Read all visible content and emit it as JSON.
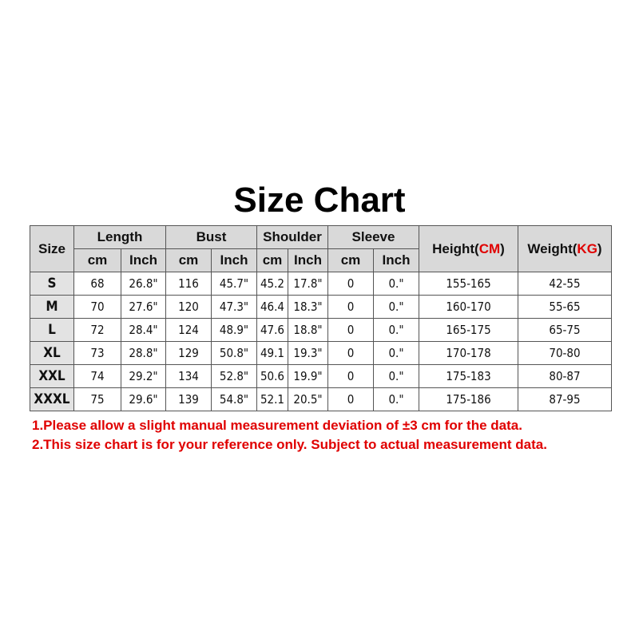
{
  "title": "Size Chart",
  "table": {
    "size_header": "Size",
    "groups": [
      "Length",
      "Bust",
      "Shoulder",
      "Sleeve"
    ],
    "sub_cm": "cm",
    "sub_inch": "Inch",
    "height_header": {
      "label": "Height(",
      "unit": "CM",
      "close": ")"
    },
    "weight_header": {
      "label": "Weight(",
      "unit": "KG",
      "close": ")"
    },
    "rows": [
      [
        "S",
        "68",
        "26.8\"",
        "116",
        "45.7\"",
        "45.2",
        "17.8\"",
        "0",
        "0.\"",
        "155-165",
        "42-55"
      ],
      [
        "M",
        "70",
        "27.6\"",
        "120",
        "47.3\"",
        "46.4",
        "18.3\"",
        "0",
        "0.\"",
        "160-170",
        "55-65"
      ],
      [
        "L",
        "72",
        "28.4\"",
        "124",
        "48.9\"",
        "47.6",
        "18.8\"",
        "0",
        "0.\"",
        "165-175",
        "65-75"
      ],
      [
        "XL",
        "73",
        "28.8\"",
        "129",
        "50.8\"",
        "49.1",
        "19.3\"",
        "0",
        "0.\"",
        "170-178",
        "70-80"
      ],
      [
        "XXL",
        "74",
        "29.2\"",
        "134",
        "52.8\"",
        "50.6",
        "19.9\"",
        "0",
        "0.\"",
        "175-183",
        "80-87"
      ],
      [
        "XXXL",
        "75",
        "29.6\"",
        "139",
        "54.8\"",
        "52.1",
        "20.5\"",
        "0",
        "0.\"",
        "175-186",
        "87-95"
      ]
    ]
  },
  "notes": [
    "1.Please allow a slight manual measurement deviation of ±3 cm for the data.",
    "2.This size chart is for your reference only. Subject to actual measurement data."
  ],
  "colors": {
    "accent": "#e00000",
    "header_bg": "#d9d9d9"
  }
}
